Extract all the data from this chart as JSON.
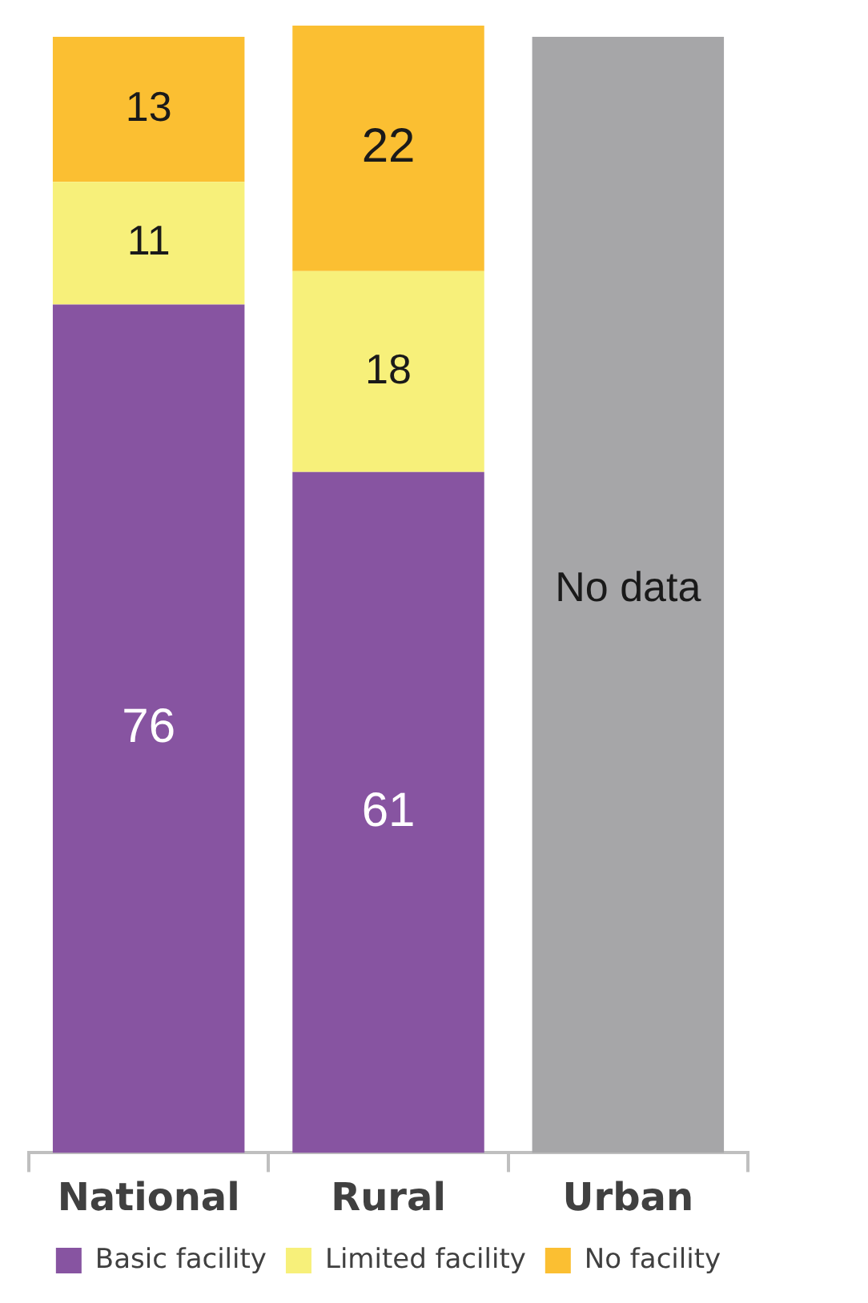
{
  "chart_data": {
    "type": "bar",
    "stacked": true,
    "categories": [
      "National",
      "Rural",
      "Urban"
    ],
    "series": [
      {
        "name": "Basic facility",
        "color": "#8754a1",
        "values": [
          76,
          61,
          null
        ],
        "value_labels": [
          "76",
          "61",
          null
        ]
      },
      {
        "name": "Limited facility",
        "color": "#f7f07a",
        "values": [
          11,
          18,
          null
        ],
        "value_labels": [
          "11",
          "18",
          null
        ]
      },
      {
        "name": "No facility",
        "color": "#fbbf32",
        "values": [
          13,
          22,
          null
        ],
        "value_labels": [
          "13",
          "22",
          null
        ]
      },
      {
        "color": "#a6a6a8",
        "values": [
          null,
          null,
          100
        ]
      }
    ],
    "ylim": [
      0,
      101
    ],
    "tick_labels": "x",
    "legend": "bottom",
    "annotations": [
      "No data"
    ]
  }
}
